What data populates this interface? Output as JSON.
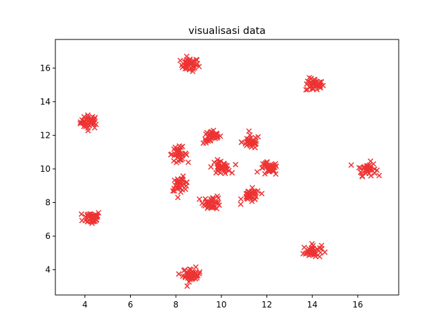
{
  "chart_data": {
    "type": "scatter",
    "title": "visualisasi data",
    "xlabel": "",
    "ylabel": "",
    "xlim": [
      2.7,
      17.8
    ],
    "ylim": [
      2.5,
      17.7
    ],
    "xticks": [
      4,
      6,
      8,
      10,
      12,
      14,
      16
    ],
    "yticks": [
      4,
      6,
      8,
      10,
      12,
      14,
      16
    ],
    "grid": false,
    "legend": "none",
    "marker": "x",
    "marker_color": "#ee3333",
    "clusters": [
      {
        "cx": 4.2,
        "cy": 12.8,
        "n": 40
      },
      {
        "cx": 8.6,
        "cy": 16.2,
        "n": 40
      },
      {
        "cx": 14.1,
        "cy": 15.0,
        "n": 40
      },
      {
        "cx": 4.3,
        "cy": 7.1,
        "n": 40
      },
      {
        "cx": 16.4,
        "cy": 10.0,
        "n": 40
      },
      {
        "cx": 14.0,
        "cy": 5.1,
        "n": 40
      },
      {
        "cx": 8.7,
        "cy": 3.7,
        "n": 40
      },
      {
        "cx": 8.1,
        "cy": 10.9,
        "n": 35
      },
      {
        "cx": 9.6,
        "cy": 11.9,
        "n": 35
      },
      {
        "cx": 11.3,
        "cy": 11.6,
        "n": 35
      },
      {
        "cx": 12.1,
        "cy": 10.0,
        "n": 35
      },
      {
        "cx": 11.3,
        "cy": 8.4,
        "n": 35
      },
      {
        "cx": 9.6,
        "cy": 8.0,
        "n": 35
      },
      {
        "cx": 8.2,
        "cy": 9.1,
        "n": 35
      },
      {
        "cx": 10.0,
        "cy": 10.1,
        "n": 35
      }
    ],
    "spread": 0.18
  }
}
